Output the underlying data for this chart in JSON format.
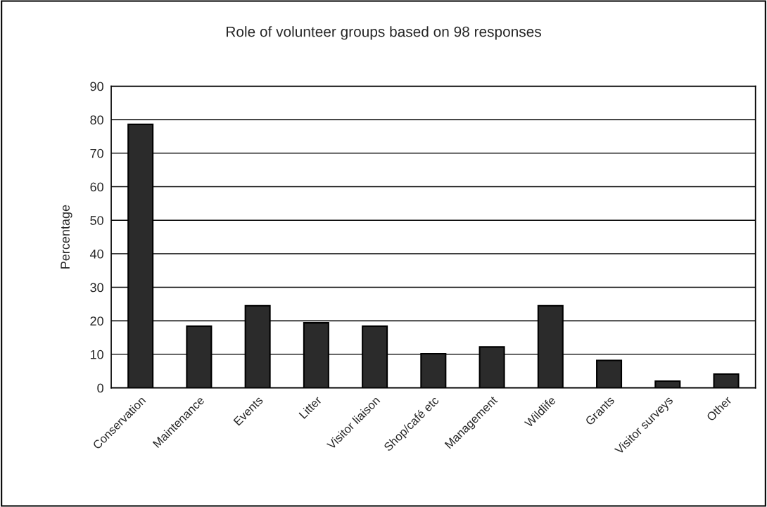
{
  "chart_data": {
    "type": "bar",
    "title": "Role of volunteer groups based on 98 responses",
    "ylabel": "Percentage",
    "categories": [
      "Conservation",
      "Maintenance",
      "Events",
      "Litter",
      "Visitor liaison",
      "Shop/café etc",
      "Management",
      "Wildlife",
      "Grants",
      "Visitor surveys",
      "Other"
    ],
    "values": [
      78.6,
      18.4,
      24.5,
      19.4,
      18.4,
      10.2,
      12.2,
      24.5,
      8.2,
      2.0,
      4.1
    ],
    "color": "#2b2b2b",
    "ylim": [
      0,
      90
    ],
    "yticks": [
      0,
      10,
      20,
      30,
      40,
      50,
      60,
      70,
      80,
      90
    ],
    "grid": "y",
    "legend": false
  }
}
